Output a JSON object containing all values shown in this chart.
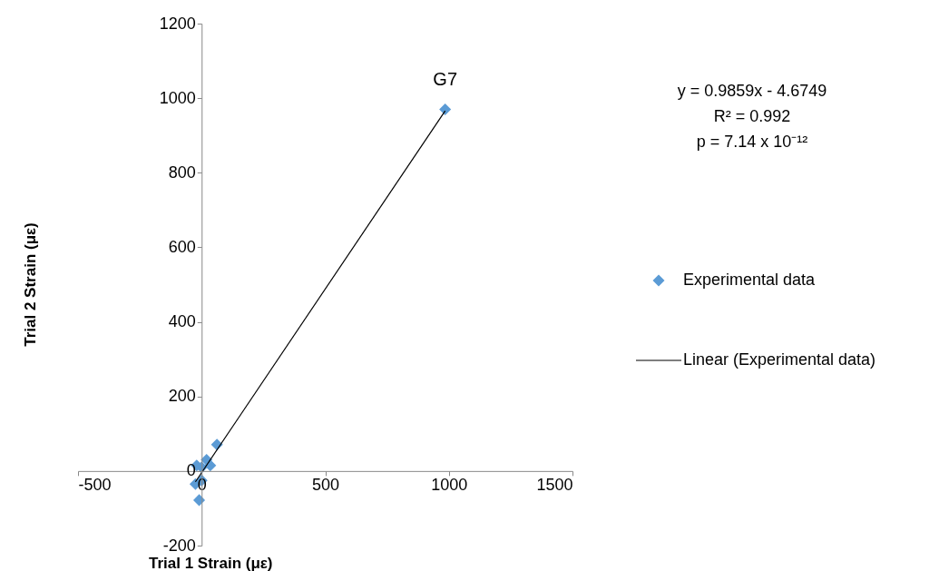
{
  "chart_data": {
    "type": "scatter",
    "xlabel": "Trial 1 Strain (με)",
    "ylabel": "Trial 2 Strain (με)",
    "xlim": [
      -500,
      1500
    ],
    "xticks": [
      -500,
      0,
      500,
      1000,
      1500
    ],
    "ylim": [
      -200,
      1200
    ],
    "yticks": [
      -200,
      0,
      200,
      400,
      600,
      800,
      1000,
      1200
    ],
    "grid": false,
    "legend": "right",
    "series": [
      {
        "name": "Experimental data",
        "type": "scatter",
        "marker": "diamond",
        "color": "#5b9bd5",
        "x": [
          62,
          -20,
          20,
          35,
          0,
          -25,
          0,
          -10,
          985
        ],
        "values": [
          71,
          15,
          30,
          15,
          10,
          -35,
          -25,
          -78,
          970
        ]
      },
      {
        "name": "Linear (Experimental data)",
        "type": "line",
        "color": "#000000",
        "x": [
          -25,
          985
        ],
        "values": [
          -29,
          966
        ]
      }
    ],
    "annotations": [
      {
        "text": "G7",
        "x": 985,
        "y": 970
      },
      "y = 0.9859x - 4.6749",
      "R² = 0.992",
      "p = 7.14 x 10⁻¹²"
    ]
  }
}
